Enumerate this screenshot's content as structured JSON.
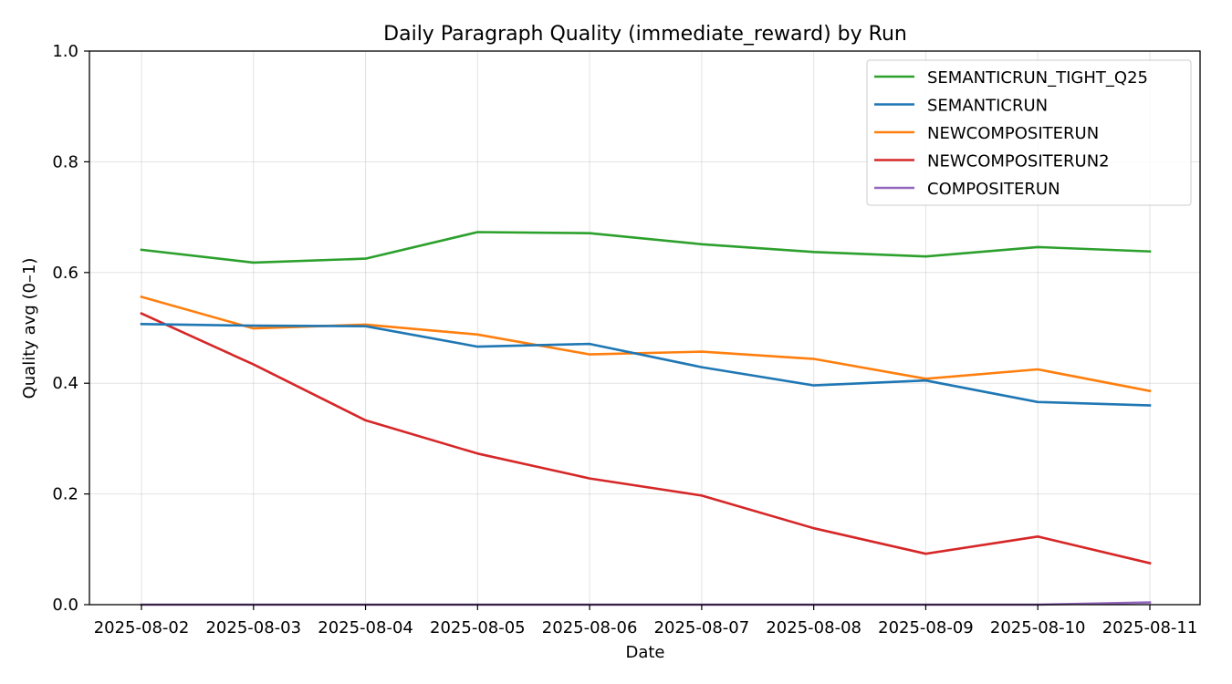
{
  "chart_data": {
    "type": "line",
    "title": "Daily Paragraph Quality (immediate_reward) by Run",
    "xlabel": "Date",
    "ylabel": "Quality avg (0–1)",
    "ylim": [
      0,
      1
    ],
    "yticks": [
      "0.0",
      "0.2",
      "0.4",
      "0.6",
      "0.8",
      "1.0"
    ],
    "ytick_values": [
      0,
      0.2,
      0.4,
      0.6,
      0.8,
      1.0
    ],
    "grid": true,
    "legend_position": "top-right",
    "categories": [
      "2025-08-02",
      "2025-08-03",
      "2025-08-04",
      "2025-08-05",
      "2025-08-06",
      "2025-08-07",
      "2025-08-08",
      "2025-08-09",
      "2025-08-10",
      "2025-08-11"
    ],
    "series": [
      {
        "name": "SEMANTICRUN_TIGHT_Q25",
        "color": "#2ca02c",
        "values": [
          0.641,
          0.618,
          0.625,
          0.673,
          0.671,
          0.651,
          0.637,
          0.629,
          0.646,
          0.638
        ]
      },
      {
        "name": "SEMANTICRUN",
        "color": "#1f77b4",
        "values": [
          0.507,
          0.504,
          0.503,
          0.466,
          0.471,
          0.429,
          0.396,
          0.405,
          0.366,
          0.36
        ]
      },
      {
        "name": "NEWCOMPOSITERUN",
        "color": "#ff7f0e",
        "values": [
          0.556,
          0.499,
          0.506,
          0.488,
          0.452,
          0.457,
          0.444,
          0.408,
          0.425,
          0.386
        ]
      },
      {
        "name": "NEWCOMPOSITERUN2",
        "color": "#d62728",
        "values": [
          0.526,
          0.434,
          0.333,
          0.273,
          0.228,
          0.197,
          0.138,
          0.092,
          0.123,
          0.075
        ]
      },
      {
        "name": "COMPOSITERUN",
        "color": "#9467bd",
        "values": [
          0.0,
          0.0,
          0.0,
          0.0,
          0.0,
          0.0,
          0.0,
          0.0,
          0.0,
          0.004
        ]
      }
    ]
  }
}
